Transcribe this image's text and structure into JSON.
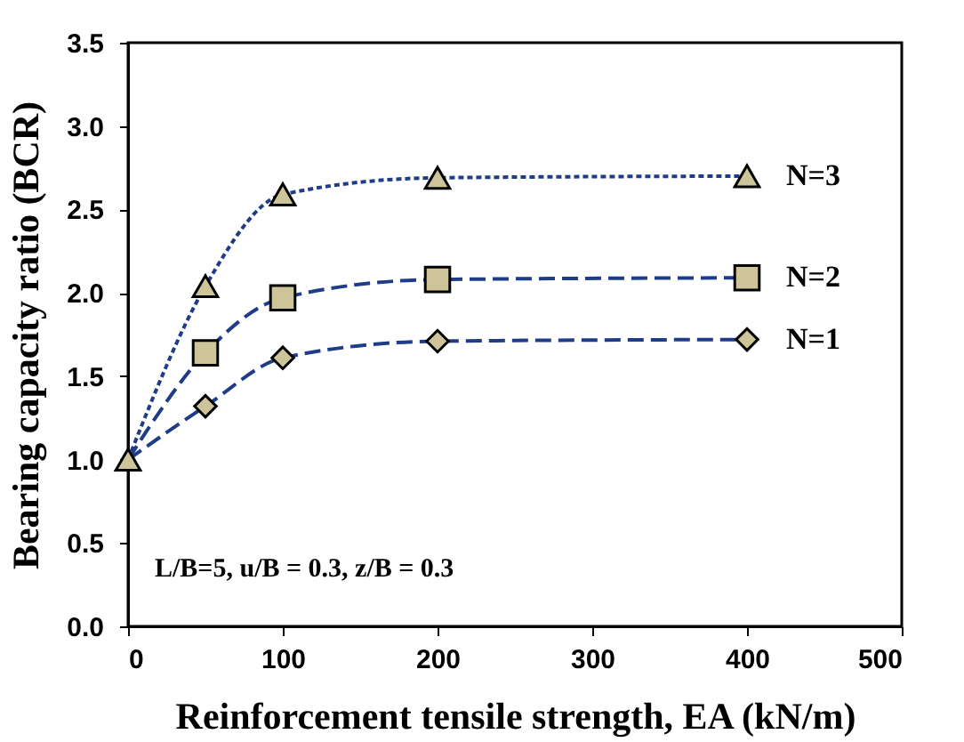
{
  "chart_data": {
    "type": "line",
    "xlabel": "Reinforcement tensile strength, EA (kN/m)",
    "ylabel": "Bearing capacity ratio (BCR)",
    "annotations": [
      "L/B=5, u/B = 0.3, z/B = 0.3"
    ],
    "xlim": [
      0,
      500
    ],
    "xticks": [
      0,
      100,
      200,
      300,
      400,
      500
    ],
    "ylim": [
      0,
      3.5
    ],
    "yticks": [
      {
        "value": 0,
        "label": "0.0"
      },
      0.5,
      {
        "value": 1,
        "label": "1.0"
      },
      1.5,
      {
        "value": 2,
        "label": "2.0"
      },
      2.5,
      {
        "value": 3,
        "label": "3.0"
      },
      3.5
    ],
    "grid": false,
    "x": [
      0,
      50,
      100,
      200,
      400
    ],
    "series": [
      {
        "color": "#1f3c88",
        "line_style": "dotted",
        "marker": "none",
        "values": [
          1.0,
          2.04,
          2.59,
          2.69,
          2.7
        ]
      },
      {
        "color": "#1f3c88",
        "line_style": "dashed",
        "marker": "none",
        "values": [
          1.0,
          1.64,
          1.97,
          2.08,
          2.09
        ]
      },
      {
        "color": "#1f3c88",
        "line_style": "dashed",
        "marker": "none",
        "values": [
          1.0,
          1.32,
          1.61,
          1.71,
          1.72
        ]
      },
      {
        "type": "scatter",
        "name": "N=1",
        "color": "#cdc49a",
        "marker": "diamond",
        "values": [
          null,
          1.32,
          1.61,
          1.71,
          1.72
        ]
      },
      {
        "type": "scatter",
        "name": "N=2",
        "color": "#cdc49a",
        "marker": "square",
        "values": [
          null,
          1.64,
          1.97,
          2.08,
          2.09
        ]
      },
      {
        "type": "scatter",
        "name": "N=3",
        "color": "#cdc49a",
        "marker": "triangle",
        "values": [
          1.0,
          2.04,
          2.59,
          2.69,
          2.7
        ]
      }
    ]
  }
}
